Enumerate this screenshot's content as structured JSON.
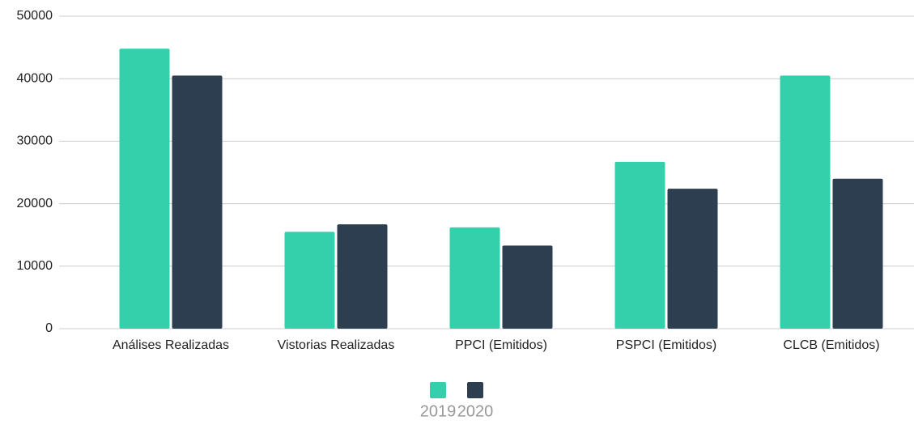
{
  "chart_data": {
    "type": "bar",
    "categories": [
      "Análises Realizadas",
      "Vistorias Realizadas",
      "PPCI (Emitidos)",
      "PSPCI (Emitidos)",
      "CLCB (Emitidos)"
    ],
    "series": [
      {
        "name": "2019",
        "color": "#33d0ab",
        "values": [
          44800,
          15500,
          16200,
          26700,
          40500
        ]
      },
      {
        "name": "2020",
        "color": "#2c3e50",
        "values": [
          40500,
          16700,
          13300,
          22400,
          24000
        ]
      }
    ],
    "ylim": [
      0,
      50000
    ],
    "yticks": [
      0,
      10000,
      20000,
      30000,
      40000,
      50000
    ],
    "grid": true,
    "legend": "bottom"
  }
}
